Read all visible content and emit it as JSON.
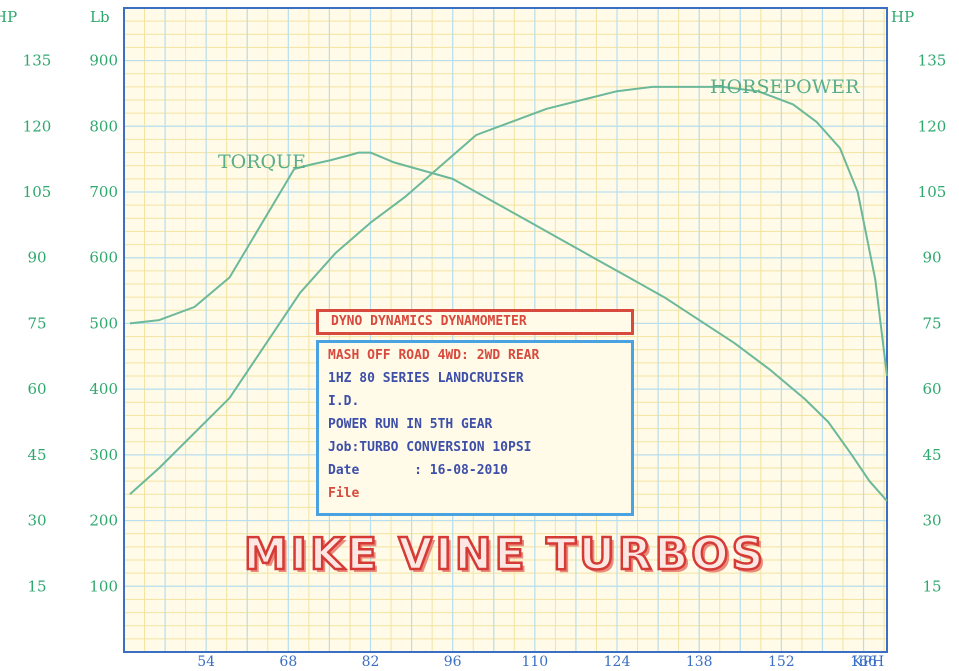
{
  "chart_data": {
    "type": "line",
    "title": "DYNO DYNAMICS DYNAMOMETER",
    "left_axis": {
      "unit": "Lb",
      "ticks": [
        100,
        200,
        300,
        400,
        500,
        600,
        700,
        800,
        900
      ]
    },
    "right_axis": {
      "unit": "HP",
      "ticks": [
        15,
        30,
        45,
        60,
        75,
        90,
        105,
        120,
        135
      ]
    },
    "far_left_axis": {
      "unit": "HP",
      "ticks": [
        15,
        30,
        45,
        60,
        75,
        90,
        105,
        120,
        135
      ]
    },
    "x_axis": {
      "unit": "KPH",
      "ticks": [
        54,
        68,
        82,
        96,
        110,
        124,
        138,
        152,
        166
      ],
      "xlim": [
        40,
        170
      ]
    },
    "ylim_left": [
      0,
      980
    ],
    "ylim_right": [
      0,
      147
    ],
    "series": [
      {
        "name": "TORQUE",
        "axis": "left",
        "x": [
          41,
          46,
          52,
          58,
          62,
          66,
          69,
          72,
          75,
          78,
          80,
          82,
          86,
          90,
          96,
          102,
          108,
          114,
          120,
          126,
          132,
          138,
          144,
          150,
          156,
          160,
          164,
          167,
          170
        ],
        "values": [
          500,
          505,
          525,
          570,
          630,
          690,
          735,
          742,
          748,
          755,
          760,
          760,
          745,
          735,
          720,
          690,
          660,
          630,
          600,
          570,
          540,
          505,
          470,
          430,
          385,
          350,
          300,
          260,
          230
        ]
      },
      {
        "name": "HORSEPOWER",
        "axis": "right",
        "x": [
          41,
          46,
          52,
          58,
          64,
          70,
          76,
          82,
          88,
          94,
          100,
          106,
          112,
          118,
          124,
          130,
          136,
          142,
          148,
          154,
          158,
          162,
          165,
          168,
          170
        ],
        "values": [
          36,
          42,
          50,
          58,
          70,
          82,
          91,
          98,
          104,
          111,
          118,
          121,
          124,
          126,
          128,
          129,
          129,
          129,
          128,
          125,
          121,
          115,
          105,
          85,
          63
        ]
      }
    ],
    "colors": {
      "grid": "#b8dff0",
      "background": "#fffbe8",
      "frame": "#3a6fc4",
      "line": "#6bb89a",
      "label": "#2fa86e"
    }
  },
  "info": {
    "line1": "MASH OFF ROAD 4WD: 2WD REAR",
    "line2": "1HZ 80 SERIES LANDCRUISER",
    "line3": "I.D.",
    "line4": "POWER RUN IN 5TH GEAR",
    "line5": "Job:TURBO CONVERSION 10PSI",
    "line6": "Date       : 16-08-2010",
    "line7": "File"
  },
  "banner": "MIKE VINE TURBOS"
}
